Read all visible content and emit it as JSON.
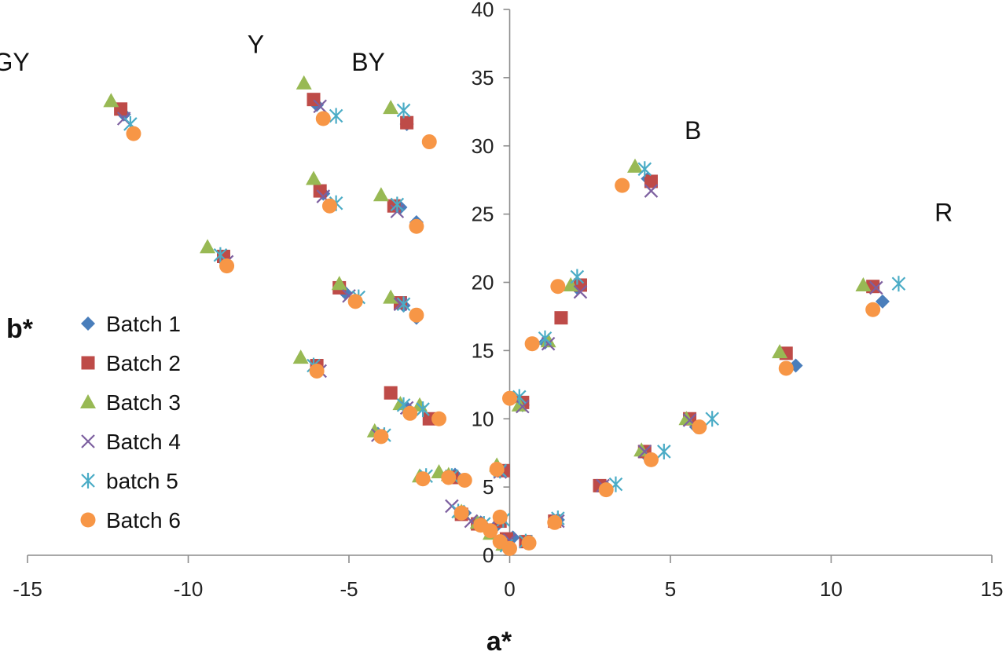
{
  "chart_data": {
    "type": "scatter",
    "xlabel": "a*",
    "ylabel": "b*",
    "xlim": [
      -15,
      15
    ],
    "ylim": [
      0,
      40
    ],
    "x_ticks": [
      "-15",
      "-10",
      "-5",
      "0",
      "5",
      "10",
      "15"
    ],
    "y_ticks": [
      "0",
      "5",
      "10",
      "15",
      "20",
      "25",
      "30",
      "35",
      "40"
    ],
    "grid": false,
    "legend_position": "left",
    "region_labels": [
      {
        "text": "GY",
        "x": -15.5,
        "y": 35.5
      },
      {
        "text": "Y",
        "x": -7.9,
        "y": 36.8
      },
      {
        "text": "BY",
        "x": -4.4,
        "y": 35.5
      },
      {
        "text": "B",
        "x": 5.7,
        "y": 30.5
      },
      {
        "text": "R",
        "x": 13.5,
        "y": 24.5
      }
    ],
    "series": [
      {
        "name": "Batch 1",
        "marker": "diamond",
        "color": "#4a7ebb",
        "points": [
          [
            -12.0,
            32.3
          ],
          [
            -6.0,
            33.0
          ],
          [
            -3.2,
            31.6
          ],
          [
            -2.5,
            30.3
          ],
          [
            -8.9,
            21.6
          ],
          [
            -5.8,
            26.5
          ],
          [
            -3.4,
            25.5
          ],
          [
            -2.9,
            24.4
          ],
          [
            -5.1,
            19.2
          ],
          [
            -3.3,
            18.3
          ],
          [
            -2.9,
            17.4
          ],
          [
            -6.0,
            13.6
          ],
          [
            -4.1,
            8.9
          ],
          [
            -3.2,
            10.8
          ],
          [
            -2.2,
            10.0
          ],
          [
            -1.7,
            5.9
          ],
          [
            -1.4,
            3.1
          ],
          [
            -0.9,
            2.4
          ],
          [
            -0.4,
            2.2
          ],
          [
            -0.1,
            0.9
          ],
          [
            0.1,
            1.3
          ],
          [
            -0.4,
            6.4
          ],
          [
            0.4,
            11.0
          ],
          [
            1.1,
            15.6
          ],
          [
            2.1,
            19.6
          ],
          [
            4.3,
            27.6
          ],
          [
            11.6,
            18.6
          ],
          [
            8.9,
            13.9
          ],
          [
            5.8,
            9.4
          ],
          [
            4.3,
            7.2
          ],
          [
            3.0,
            5.0
          ],
          [
            1.5,
            2.6
          ],
          [
            0.6,
            0.9
          ]
        ]
      },
      {
        "name": "Batch 2",
        "marker": "square",
        "color": "#be4b48",
        "points": [
          [
            -12.1,
            32.7
          ],
          [
            -6.1,
            33.4
          ],
          [
            -3.2,
            31.7
          ],
          [
            -8.9,
            21.9
          ],
          [
            -5.9,
            26.7
          ],
          [
            -3.6,
            25.6
          ],
          [
            -5.3,
            19.6
          ],
          [
            -3.4,
            18.5
          ],
          [
            -6.0,
            13.9
          ],
          [
            -3.7,
            11.9
          ],
          [
            -2.5,
            10.0
          ],
          [
            -1.8,
            5.7
          ],
          [
            -1.5,
            3.0
          ],
          [
            -1.0,
            2.3
          ],
          [
            -0.3,
            2.5
          ],
          [
            -0.2,
            6.2
          ],
          [
            0.4,
            11.2
          ],
          [
            1.6,
            17.4
          ],
          [
            2.2,
            19.8
          ],
          [
            4.4,
            27.4
          ],
          [
            11.3,
            19.7
          ],
          [
            8.6,
            14.8
          ],
          [
            5.6,
            10.0
          ],
          [
            4.2,
            7.6
          ],
          [
            2.8,
            5.1
          ],
          [
            1.4,
            2.5
          ],
          [
            0.5,
            1.0
          ],
          [
            -0.1,
            1.2
          ]
        ]
      },
      {
        "name": "Batch 3",
        "marker": "triangle",
        "color": "#98b954",
        "points": [
          [
            -12.4,
            33.3
          ],
          [
            -6.4,
            34.6
          ],
          [
            -3.7,
            32.8
          ],
          [
            -9.4,
            22.6
          ],
          [
            -6.1,
            27.6
          ],
          [
            -4.0,
            26.4
          ],
          [
            -5.3,
            19.9
          ],
          [
            -3.7,
            18.9
          ],
          [
            -6.5,
            14.5
          ],
          [
            -4.2,
            9.1
          ],
          [
            -3.4,
            11.1
          ],
          [
            -2.8,
            11.0
          ],
          [
            -2.8,
            5.8
          ],
          [
            -2.2,
            6.1
          ],
          [
            -1.9,
            5.9
          ],
          [
            -1.5,
            3.2
          ],
          [
            -1.0,
            2.4
          ],
          [
            -0.4,
            6.6
          ],
          [
            0.3,
            11.0
          ],
          [
            1.2,
            15.7
          ],
          [
            1.9,
            19.8
          ],
          [
            3.9,
            28.5
          ],
          [
            11.0,
            19.8
          ],
          [
            8.4,
            14.9
          ],
          [
            5.5,
            10.0
          ],
          [
            4.1,
            7.7
          ],
          [
            -0.6,
            1.6
          ],
          [
            -0.2,
            0.8
          ]
        ]
      },
      {
        "name": "Batch 4",
        "marker": "x",
        "color": "#7d60a0",
        "points": [
          [
            -12.0,
            32.0
          ],
          [
            -5.9,
            32.9
          ],
          [
            -8.8,
            21.5
          ],
          [
            -5.8,
            26.3
          ],
          [
            -3.5,
            25.2
          ],
          [
            -5.0,
            19.0
          ],
          [
            -3.4,
            18.4
          ],
          [
            -5.9,
            13.5
          ],
          [
            -4.1,
            8.8
          ],
          [
            -3.2,
            10.8
          ],
          [
            -1.8,
            3.6
          ],
          [
            -1.2,
            2.5
          ],
          [
            -0.3,
            6.1
          ],
          [
            0.4,
            10.9
          ],
          [
            1.2,
            15.5
          ],
          [
            2.2,
            19.3
          ],
          [
            4.4,
            26.7
          ],
          [
            11.4,
            19.6
          ],
          [
            5.6,
            9.9
          ],
          [
            4.2,
            7.6
          ],
          [
            2.9,
            5.1
          ],
          [
            1.5,
            2.5
          ],
          [
            -0.6,
            2.1
          ],
          [
            0.0,
            1.1
          ]
        ]
      },
      {
        "name": "batch 5",
        "marker": "star",
        "color": "#4bacc6",
        "points": [
          [
            -11.8,
            31.6
          ],
          [
            -5.4,
            32.2
          ],
          [
            -3.3,
            32.6
          ],
          [
            -9.0,
            22.0
          ],
          [
            -5.4,
            25.8
          ],
          [
            -3.5,
            25.7
          ],
          [
            -4.7,
            18.9
          ],
          [
            -3.3,
            18.4
          ],
          [
            -6.1,
            13.9
          ],
          [
            -3.9,
            8.8
          ],
          [
            -3.3,
            11.0
          ],
          [
            -2.7,
            10.7
          ],
          [
            -2.6,
            5.8
          ],
          [
            -1.8,
            5.8
          ],
          [
            -1.6,
            3.2
          ],
          [
            -0.8,
            2.3
          ],
          [
            -0.2,
            2.6
          ],
          [
            -0.3,
            6.2
          ],
          [
            0.3,
            11.6
          ],
          [
            1.1,
            15.9
          ],
          [
            2.1,
            20.4
          ],
          [
            4.2,
            28.3
          ],
          [
            12.1,
            19.9
          ],
          [
            6.3,
            10.0
          ],
          [
            4.8,
            7.6
          ],
          [
            3.3,
            5.2
          ],
          [
            1.5,
            2.7
          ],
          [
            0.5,
            1.0
          ],
          [
            -0.1,
            0.7
          ]
        ]
      },
      {
        "name": "Batch 6",
        "marker": "circle",
        "color": "#f79646",
        "points": [
          [
            -11.7,
            30.9
          ],
          [
            -5.8,
            32.0
          ],
          [
            -2.5,
            30.3
          ],
          [
            -8.8,
            21.2
          ],
          [
            -5.6,
            25.6
          ],
          [
            -2.9,
            24.1
          ],
          [
            -4.8,
            18.6
          ],
          [
            -2.9,
            17.6
          ],
          [
            -6.0,
            13.5
          ],
          [
            -4.0,
            8.7
          ],
          [
            -3.1,
            10.4
          ],
          [
            -2.2,
            10.0
          ],
          [
            -2.7,
            5.6
          ],
          [
            -1.9,
            5.7
          ],
          [
            -1.4,
            5.5
          ],
          [
            -1.5,
            3.1
          ],
          [
            -0.9,
            2.2
          ],
          [
            -0.6,
            1.8
          ],
          [
            -0.3,
            2.8
          ],
          [
            -0.4,
            6.3
          ],
          [
            0.0,
            11.5
          ],
          [
            0.7,
            15.5
          ],
          [
            1.5,
            19.7
          ],
          [
            3.5,
            27.1
          ],
          [
            11.3,
            18.0
          ],
          [
            8.6,
            13.7
          ],
          [
            5.9,
            9.4
          ],
          [
            4.4,
            7.0
          ],
          [
            3.0,
            4.8
          ],
          [
            1.4,
            2.4
          ],
          [
            0.6,
            0.9
          ],
          [
            0.0,
            0.5
          ],
          [
            -0.3,
            1.0
          ]
        ]
      }
    ]
  }
}
